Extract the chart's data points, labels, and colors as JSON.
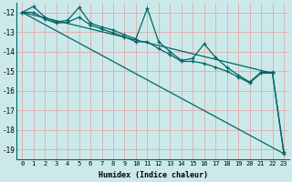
{
  "xlabel": "Humidex (Indice chaleur)",
  "background_color": "#cce9ea",
  "grid_color": "#aacccc",
  "line_color": "#006666",
  "xlim": [
    -0.5,
    23.5
  ],
  "ylim": [
    -19.5,
    -11.5
  ],
  "yticks": [
    -12,
    -13,
    -14,
    -15,
    -16,
    -17,
    -18,
    -19
  ],
  "xticks": [
    0,
    1,
    2,
    3,
    4,
    5,
    6,
    7,
    8,
    9,
    10,
    11,
    12,
    13,
    14,
    15,
    16,
    17,
    18,
    19,
    20,
    21,
    22,
    23
  ],
  "series": {
    "line_zigzag1": {
      "x": [
        0,
        1,
        2,
        3,
        4,
        5,
        6,
        7,
        8,
        9,
        10,
        11,
        12,
        13,
        14,
        15,
        16,
        17,
        18,
        19,
        20,
        21,
        22,
        23
      ],
      "y": [
        -12.0,
        -11.7,
        -12.25,
        -12.5,
        -12.4,
        -11.75,
        -12.55,
        -12.75,
        -12.9,
        -13.15,
        -13.35,
        -11.8,
        -13.5,
        -14.0,
        -14.45,
        -14.35,
        -13.6,
        -14.3,
        -14.8,
        -15.2,
        -15.55,
        -15.05,
        -15.05,
        -19.1
      ]
    },
    "line_zigzag2": {
      "x": [
        0,
        1,
        2,
        3,
        4,
        5,
        6,
        7,
        8,
        9,
        10,
        11,
        12,
        13,
        14,
        15,
        16,
        17,
        18,
        19,
        20,
        21,
        22,
        23
      ],
      "y": [
        -12.0,
        -12.0,
        -12.35,
        -12.55,
        -12.5,
        -12.25,
        -12.65,
        -12.85,
        -13.05,
        -13.25,
        -13.5,
        -13.5,
        -13.85,
        -14.15,
        -14.5,
        -14.5,
        -14.6,
        -14.8,
        -15.0,
        -15.3,
        -15.6,
        -15.1,
        -15.1,
        -19.2
      ]
    },
    "line_steep": {
      "x": [
        0,
        23
      ],
      "y": [
        -12.0,
        -19.2
      ]
    },
    "line_shallow": {
      "x": [
        0,
        22
      ],
      "y": [
        -12.0,
        -15.1
      ]
    }
  }
}
